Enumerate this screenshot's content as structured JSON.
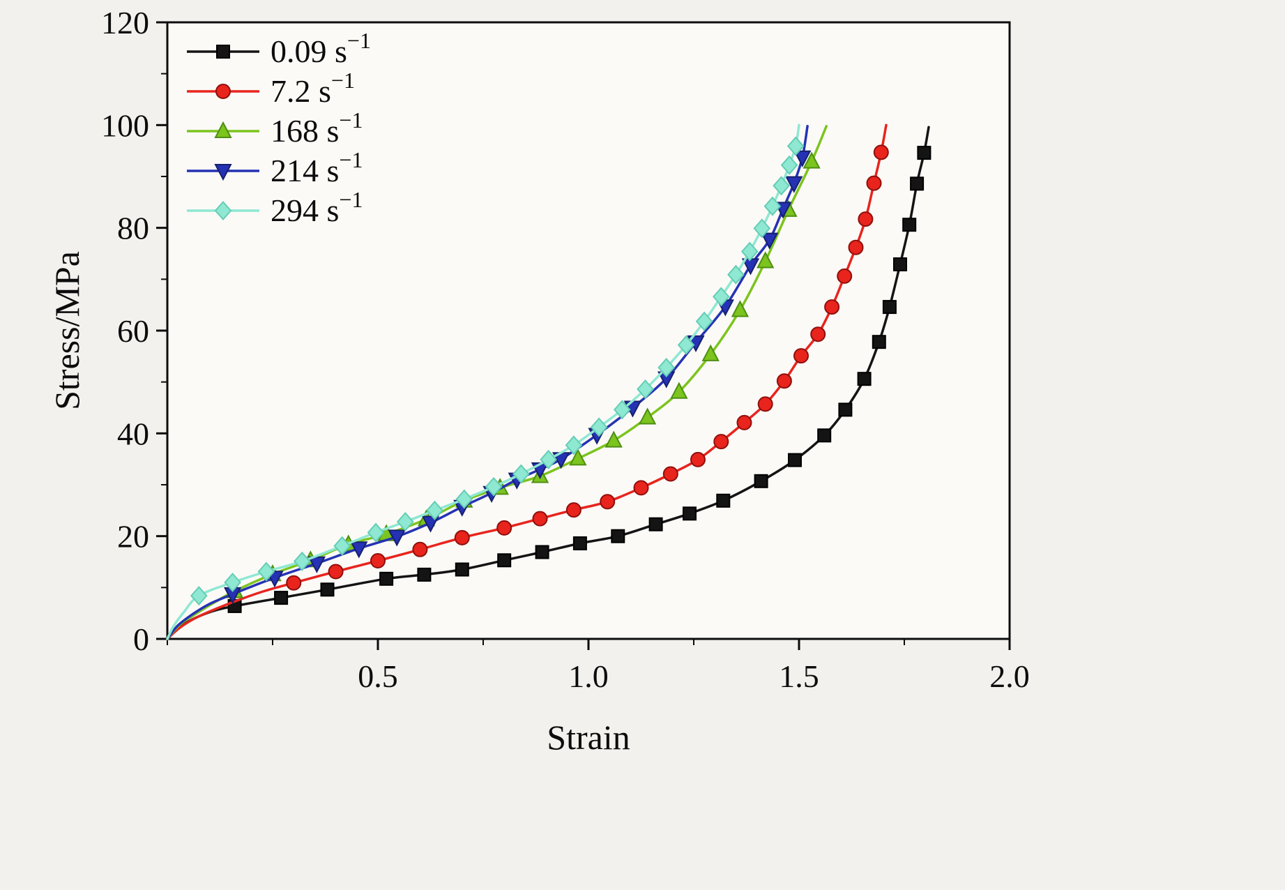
{
  "figure": {
    "background": "#f2f1ee",
    "plot_background": "#fbfaf7",
    "frame_color": "#0c0c0c"
  },
  "chart_data": {
    "type": "line",
    "title": "",
    "xlabel": "Strain",
    "ylabel": "Stress/MPa",
    "xlim": [
      0,
      2.0
    ],
    "ylim": [
      0,
      120
    ],
    "xticks": [
      0.5,
      1.0,
      1.5,
      2.0
    ],
    "xtick_labels": [
      "0.5",
      "1.0",
      "1.5",
      "2.0"
    ],
    "yticks": [
      0,
      20,
      40,
      60,
      80,
      100,
      120
    ],
    "ytick_labels": [
      "0",
      "20",
      "40",
      "60",
      "80",
      "100",
      "120"
    ],
    "x_minor_step": 0.25,
    "y_minor_step": 10,
    "grid": false,
    "legend_position": "top-left",
    "series": [
      {
        "name": "0.09 s⁻¹",
        "color": "#141414",
        "edge": "#000000",
        "marker": "square",
        "lead": [
          [
            0,
            0
          ],
          [
            0.02,
            1.8
          ],
          [
            0.05,
            3.4
          ],
          [
            0.09,
            4.9
          ],
          [
            0.12,
            5.7
          ]
        ],
        "points": [
          [
            0.16,
            6.4
          ],
          [
            0.27,
            8.0
          ],
          [
            0.38,
            9.6
          ],
          [
            0.52,
            11.7
          ],
          [
            0.61,
            12.5
          ],
          [
            0.7,
            13.5
          ],
          [
            0.8,
            15.3
          ],
          [
            0.89,
            16.9
          ],
          [
            0.98,
            18.6
          ],
          [
            1.07,
            20.0
          ],
          [
            1.16,
            22.3
          ],
          [
            1.24,
            24.4
          ],
          [
            1.32,
            26.9
          ],
          [
            1.41,
            30.7
          ],
          [
            1.49,
            34.8
          ],
          [
            1.56,
            39.6
          ],
          [
            1.61,
            44.6
          ],
          [
            1.655,
            50.6
          ],
          [
            1.69,
            57.8
          ],
          [
            1.715,
            64.6
          ],
          [
            1.74,
            72.9
          ],
          [
            1.762,
            80.6
          ],
          [
            1.78,
            88.6
          ],
          [
            1.797,
            94.6
          ]
        ],
        "tail": [
          [
            1.808,
            99.6
          ]
        ]
      },
      {
        "name": "7.2 s⁻¹",
        "color": "#e8241d",
        "edge": "#8f0f0b",
        "marker": "circle",
        "lead": [
          [
            0,
            0
          ],
          [
            0.03,
            2.2
          ],
          [
            0.07,
            4.2
          ],
          [
            0.12,
            6.0
          ],
          [
            0.17,
            7.6
          ],
          [
            0.23,
            9.3
          ]
        ],
        "points": [
          [
            0.3,
            10.9
          ],
          [
            0.4,
            13.1
          ],
          [
            0.5,
            15.2
          ],
          [
            0.6,
            17.4
          ],
          [
            0.7,
            19.7
          ],
          [
            0.8,
            21.6
          ],
          [
            0.885,
            23.4
          ],
          [
            0.965,
            25.1
          ],
          [
            1.045,
            26.7
          ],
          [
            1.125,
            29.4
          ],
          [
            1.195,
            32.1
          ],
          [
            1.26,
            34.9
          ],
          [
            1.315,
            38.4
          ],
          [
            1.37,
            42.1
          ],
          [
            1.42,
            45.7
          ],
          [
            1.465,
            50.2
          ],
          [
            1.505,
            55.1
          ],
          [
            1.545,
            59.3
          ],
          [
            1.578,
            64.6
          ],
          [
            1.608,
            70.6
          ],
          [
            1.635,
            76.2
          ],
          [
            1.658,
            81.7
          ],
          [
            1.678,
            88.7
          ],
          [
            1.695,
            94.7
          ]
        ],
        "tail": [
          [
            1.707,
            100
          ]
        ]
      },
      {
        "name": "168 s⁻¹",
        "color": "#7cc41e",
        "edge": "#4e8f12",
        "marker": "triangle-up",
        "lead": [
          [
            0,
            0
          ],
          [
            0.03,
            2.8
          ],
          [
            0.07,
            5.0
          ],
          [
            0.11,
            7.0
          ]
        ],
        "points": [
          [
            0.16,
            9.3
          ],
          [
            0.25,
            12.6
          ],
          [
            0.34,
            15.3
          ],
          [
            0.43,
            18.4
          ],
          [
            0.52,
            20.4
          ],
          [
            0.615,
            23.3
          ],
          [
            0.705,
            26.9
          ],
          [
            0.79,
            29.4
          ],
          [
            0.885,
            31.7
          ],
          [
            0.975,
            35.1
          ],
          [
            1.06,
            38.6
          ],
          [
            1.14,
            43.1
          ],
          [
            1.215,
            48.1
          ],
          [
            1.29,
            55.4
          ],
          [
            1.36,
            64.0
          ],
          [
            1.42,
            73.5
          ],
          [
            1.475,
            83.5
          ],
          [
            1.53,
            92.9
          ]
        ],
        "tail": [
          [
            1.565,
            99.8
          ]
        ]
      },
      {
        "name": "214 s⁻¹",
        "color": "#2532b4",
        "edge": "#16206e",
        "marker": "triangle-down",
        "lead": [
          [
            0,
            0
          ],
          [
            0.025,
            2.6
          ],
          [
            0.06,
            4.8
          ],
          [
            0.1,
            6.8
          ]
        ],
        "points": [
          [
            0.155,
            8.7
          ],
          [
            0.255,
            11.9
          ],
          [
            0.355,
            14.7
          ],
          [
            0.455,
            17.6
          ],
          [
            0.545,
            19.9
          ],
          [
            0.625,
            22.6
          ],
          [
            0.7,
            25.7
          ],
          [
            0.77,
            28.4
          ],
          [
            0.83,
            31.0
          ],
          [
            0.885,
            33.0
          ],
          [
            0.935,
            35.0
          ],
          [
            1.02,
            39.7
          ],
          [
            1.105,
            45.0
          ],
          [
            1.185,
            50.7
          ],
          [
            1.255,
            57.7
          ],
          [
            1.325,
            64.7
          ],
          [
            1.385,
            72.7
          ],
          [
            1.43,
            77.7
          ],
          [
            1.462,
            83.7
          ],
          [
            1.488,
            88.7
          ],
          [
            1.508,
            93.7
          ]
        ],
        "tail": [
          [
            1.52,
            99.8
          ]
        ]
      },
      {
        "name": "294 s⁻¹",
        "color": "#8fe8d2",
        "edge": "#64cdb4",
        "marker": "diamond",
        "lead": [
          [
            0,
            0
          ],
          [
            0.015,
            2.5
          ],
          [
            0.04,
            5.3
          ]
        ],
        "points": [
          [
            0.075,
            8.4
          ],
          [
            0.155,
            11.0
          ],
          [
            0.235,
            13.1
          ],
          [
            0.32,
            15.1
          ],
          [
            0.415,
            18.1
          ],
          [
            0.495,
            20.7
          ],
          [
            0.565,
            22.8
          ],
          [
            0.635,
            25.0
          ],
          [
            0.705,
            27.2
          ],
          [
            0.775,
            29.6
          ],
          [
            0.84,
            32.1
          ],
          [
            0.905,
            34.9
          ],
          [
            0.965,
            37.7
          ],
          [
            1.025,
            41.2
          ],
          [
            1.08,
            44.6
          ],
          [
            1.135,
            48.6
          ],
          [
            1.185,
            52.8
          ],
          [
            1.232,
            57.2
          ],
          [
            1.275,
            61.8
          ],
          [
            1.315,
            66.6
          ],
          [
            1.35,
            70.9
          ],
          [
            1.383,
            75.4
          ],
          [
            1.412,
            79.9
          ],
          [
            1.437,
            84.2
          ],
          [
            1.458,
            88.2
          ],
          [
            1.477,
            92.2
          ],
          [
            1.492,
            95.9
          ]
        ],
        "tail": [
          [
            1.5,
            100
          ]
        ]
      }
    ]
  }
}
